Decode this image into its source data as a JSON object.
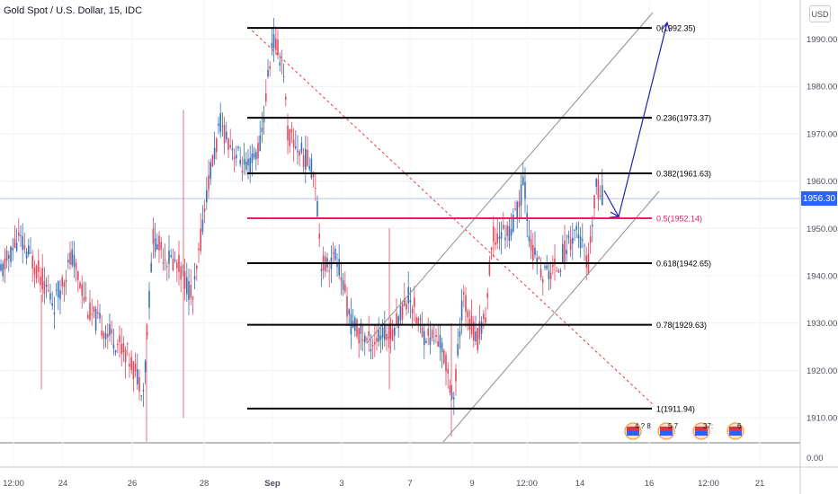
{
  "header": {
    "symbol": "Gold Spot / U.S. Dollar, 15, IDC",
    "currency_button": "USD"
  },
  "price_scale": {
    "labels": [
      "1990.00",
      "1980.00",
      "1970.00",
      "1960.00",
      "1950.00",
      "1940.00",
      "1930.00",
      "1920.00",
      "1910.00",
      "0.00"
    ],
    "current_price": "1956.30"
  },
  "time_axis": {
    "labels": [
      "12:00",
      "24",
      "26",
      "28",
      "Sep",
      "3",
      "7",
      "9",
      "12:00",
      "14",
      "16",
      "12:00",
      "21"
    ]
  },
  "chart_data": {
    "type": "line",
    "symbol": "XAUUSD",
    "timeframe": "15",
    "current_price": 1956.3,
    "y_range": [
      1903.5,
      1998.5
    ],
    "fibonacci": [
      {
        "level": "0",
        "price": 1992.35,
        "label": "0(1992.35)"
      },
      {
        "level": "0.236",
        "price": 1973.37,
        "label": "0.236(1973.37)"
      },
      {
        "level": "0.382",
        "price": 1961.63,
        "label": "0.382(1961.63)"
      },
      {
        "level": "0.5",
        "price": 1952.14,
        "label": "0.5(1952.14)"
      },
      {
        "level": "0.618",
        "price": 1942.65,
        "label": "0.618(1942.65)"
      },
      {
        "level": "0.78",
        "price": 1929.63,
        "label": "0.78(1929.63)"
      },
      {
        "level": "1",
        "price": 1911.94,
        "label": "1(1911.94)"
      }
    ],
    "channel": {
      "direction": "ascending"
    },
    "projection": {
      "path": [
        1958.0,
        1952.5,
        1993.5
      ]
    },
    "event_badges": [
      {
        "text": "4 ? 8"
      },
      {
        "text": "5 7"
      },
      {
        "text": "37:"
      },
      {
        "text": "6"
      }
    ],
    "colors": {
      "fib_line": "#000000",
      "fib_half": "#e91e63",
      "channel": "#909090",
      "diagonal": "#f23645",
      "projection": "#1e22b8",
      "candle_up": "#3b6fb8",
      "candle_down": "#e14a5e",
      "price_tag": "#2962ff"
    }
  }
}
